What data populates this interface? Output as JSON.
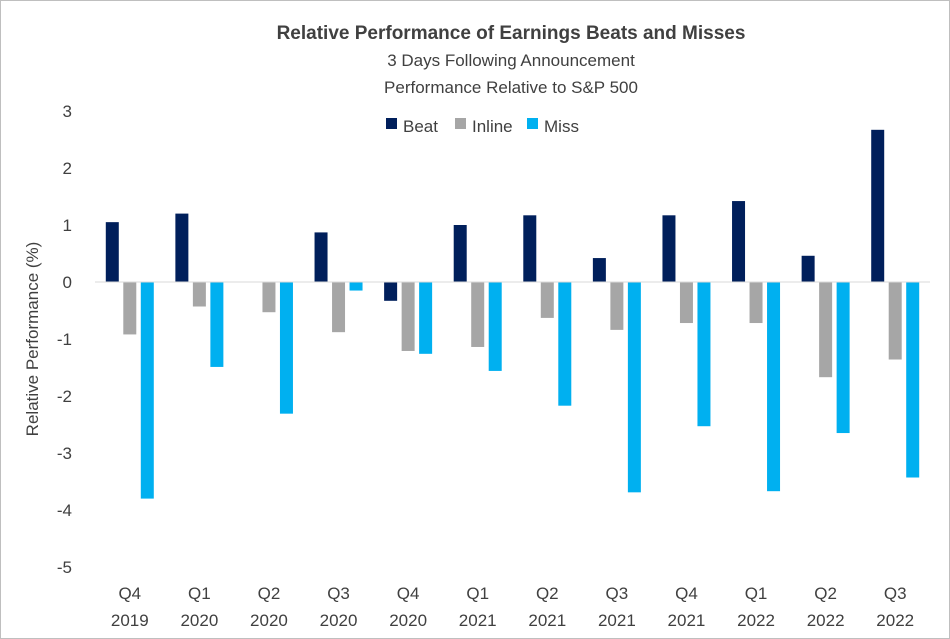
{
  "chart_data": {
    "type": "bar",
    "title": "Relative  Performance of Earnings Beats and Misses",
    "subtitle_lines": [
      "3 Days Following Announcement",
      "Performance Relative to S&P 500"
    ],
    "xlabel": "",
    "ylabel": "Relative Performance (%)",
    "ylim": [
      -5,
      3
    ],
    "yticks": [
      3,
      2,
      1,
      0,
      -1,
      -2,
      -3,
      -4,
      -5
    ],
    "grid": false,
    "legend_position": "top",
    "categories": [
      [
        "Q4",
        "2019"
      ],
      [
        "Q1",
        "2020"
      ],
      [
        "Q2",
        "2020"
      ],
      [
        "Q3",
        "2020"
      ],
      [
        "Q4",
        "2020"
      ],
      [
        "Q1",
        "2021"
      ],
      [
        "Q2",
        "2021"
      ],
      [
        "Q3",
        "2021"
      ],
      [
        "Q4",
        "2021"
      ],
      [
        "Q1",
        "2022"
      ],
      [
        "Q2",
        "2022"
      ],
      [
        "Q3",
        "2022"
      ]
    ],
    "series": [
      {
        "name": "Beat",
        "color": "#001f5b",
        "values": [
          1.05,
          1.2,
          null,
          0.87,
          -0.33,
          1.0,
          1.17,
          0.42,
          1.17,
          1.42,
          0.46,
          2.67
        ]
      },
      {
        "name": "Inline",
        "color": "#a6a6a6",
        "values": [
          -0.92,
          -0.43,
          -0.53,
          -0.88,
          -1.21,
          -1.14,
          -0.63,
          -0.84,
          -0.72,
          -0.72,
          -1.67,
          -1.36
        ]
      },
      {
        "name": "Miss",
        "color": "#00b0f0",
        "values": [
          -3.8,
          -1.49,
          -2.31,
          -0.15,
          -1.26,
          -1.56,
          -2.17,
          -3.69,
          -2.53,
          -3.67,
          -2.65,
          -3.43
        ]
      }
    ]
  }
}
